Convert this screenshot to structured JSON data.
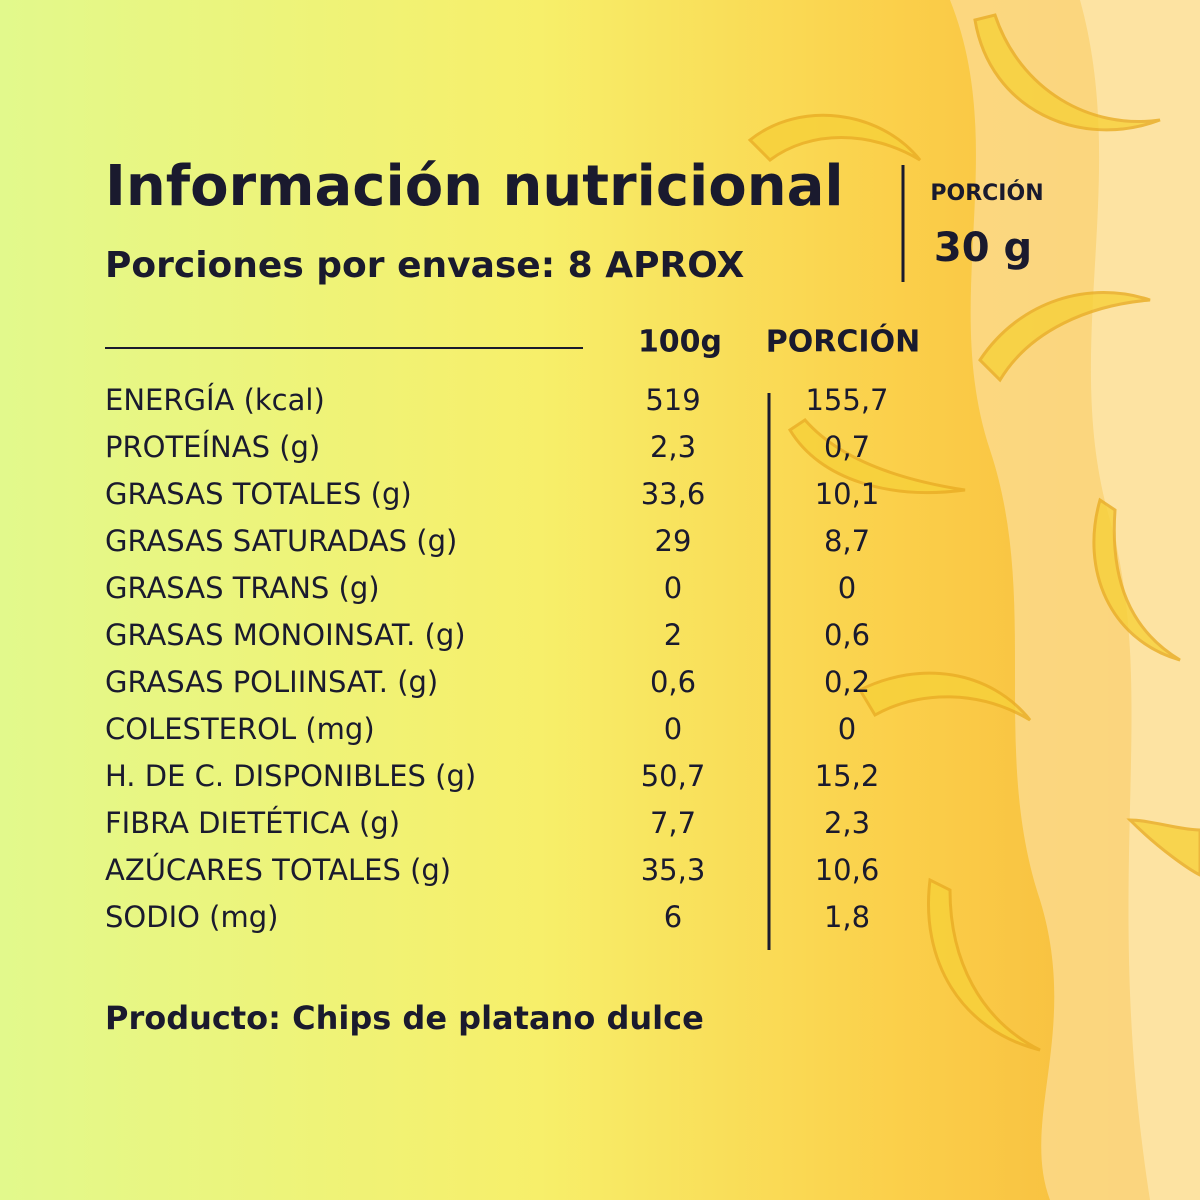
{
  "header": {
    "title": "Información nutricional",
    "subtitle": "Porciones por envase: 8 APROX"
  },
  "portion": {
    "label": "PORCIÓN",
    "value": "30 g"
  },
  "table": {
    "headers": [
      "100g",
      "PORCIÓN"
    ],
    "rows": [
      [
        "ENERGÍA (kcal)",
        "519",
        "155,7"
      ],
      [
        "PROTEÍNAS (g)",
        "2,3",
        "0,7"
      ],
      [
        "GRASAS TOTALES (g)",
        "33,6",
        "10,1"
      ],
      [
        "GRASAS SATURADAS (g)",
        "29",
        "8,7"
      ],
      [
        "GRASAS TRANS (g)",
        "0",
        "0"
      ],
      [
        "GRASAS MONOINSAT. (g)",
        "2",
        "0,6"
      ],
      [
        "GRASAS POLIINSAT. (g)",
        "0,6",
        "0,2"
      ],
      [
        "COLESTEROL (mg)",
        "0",
        "0"
      ],
      [
        "H. DE C. DISPONIBLES (g)",
        "50,7",
        "15,2"
      ],
      [
        "FIBRA DIETÉTICA (g)",
        "7,7",
        "2,3"
      ],
      [
        "AZÚCARES TOTALES (g)",
        "35,3",
        "10,6"
      ],
      [
        "SODIO (mg)",
        "6",
        "1,8"
      ]
    ]
  },
  "footer": {
    "text": "Producto: Chips de platano dulce"
  }
}
